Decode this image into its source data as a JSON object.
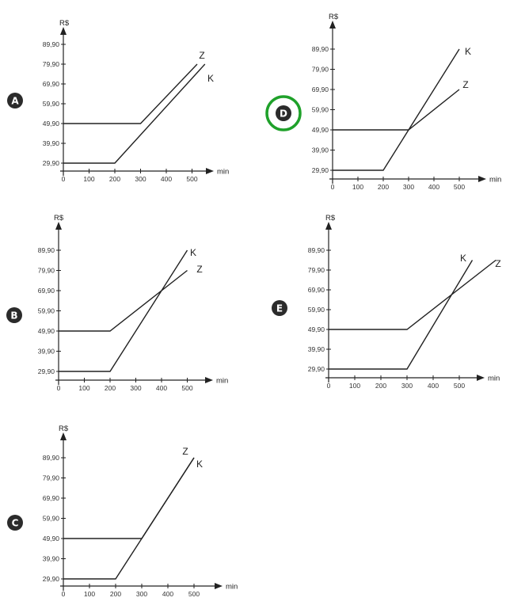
{
  "chart_data": [
    {
      "type": "line",
      "badge": "A",
      "ylabel": "R$",
      "xlabel": "min",
      "x_ticks": [
        "0",
        "100",
        "200",
        "300",
        "400",
        "500"
      ],
      "y_ticks": [
        "29,90",
        "39,90",
        "49,90",
        "59,90",
        "69,90",
        "79,90",
        "89,90"
      ],
      "series": [
        {
          "name": "Z",
          "x": [
            0,
            300,
            520
          ],
          "y": [
            49.9,
            49.9,
            79.9
          ]
        },
        {
          "name": "K",
          "x": [
            0,
            200,
            550
          ],
          "y": [
            29.9,
            29.9,
            79.9
          ]
        }
      ]
    },
    {
      "type": "line",
      "badge": "D",
      "answer": true,
      "ylabel": "R$",
      "xlabel": "min",
      "x_ticks": [
        "0",
        "100",
        "200",
        "300",
        "400",
        "500"
      ],
      "y_ticks": [
        "29,90",
        "39,90",
        "49,90",
        "59,90",
        "69,90",
        "79,90",
        "89,90"
      ],
      "series": [
        {
          "name": "K",
          "x": [
            0,
            200,
            500
          ],
          "y": [
            29.9,
            29.9,
            89.9
          ]
        },
        {
          "name": "Z",
          "x": [
            0,
            300,
            500
          ],
          "y": [
            49.9,
            49.9,
            69.9
          ]
        }
      ]
    },
    {
      "type": "line",
      "badge": "B",
      "ylabel": "R$",
      "xlabel": "min",
      "x_ticks": [
        "0",
        "100",
        "200",
        "300",
        "400",
        "500"
      ],
      "y_ticks": [
        "29,90",
        "39,90",
        "49,90",
        "59,90",
        "69,90",
        "79,90",
        "89,90"
      ],
      "series": [
        {
          "name": "K",
          "x": [
            0,
            200,
            500
          ],
          "y": [
            29.9,
            29.9,
            89.9
          ]
        },
        {
          "name": "Z",
          "x": [
            0,
            200,
            500
          ],
          "y": [
            49.9,
            49.9,
            79.9
          ]
        }
      ]
    },
    {
      "type": "line",
      "badge": "E",
      "ylabel": "R$",
      "xlabel": "min",
      "x_ticks": [
        "0",
        "100",
        "200",
        "300",
        "400",
        "500"
      ],
      "y_ticks": [
        "29,90",
        "39,90",
        "49,90",
        "59,90",
        "69,90",
        "79,90",
        "89,90"
      ],
      "series": [
        {
          "name": "K",
          "x": [
            0,
            300,
            550
          ],
          "y": [
            29.9,
            29.9,
            84.9
          ]
        },
        {
          "name": "Z",
          "x": [
            0,
            300,
            640
          ],
          "y": [
            49.9,
            49.9,
            84.9
          ]
        }
      ]
    },
    {
      "type": "line",
      "badge": "C",
      "ylabel": "R$",
      "xlabel": "min",
      "x_ticks": [
        "0",
        "100",
        "200",
        "300",
        "400",
        "500"
      ],
      "y_ticks": [
        "29,90",
        "39,90",
        "49,90",
        "59,90",
        "69,90",
        "79,90",
        "89,90"
      ],
      "series": [
        {
          "name": "Z",
          "x": [
            0,
            300,
            500
          ],
          "y": [
            49.9,
            49.9,
            89.9
          ]
        },
        {
          "name": "K",
          "x": [
            0,
            200,
            500
          ],
          "y": [
            29.9,
            29.9,
            89.9
          ]
        }
      ]
    }
  ]
}
